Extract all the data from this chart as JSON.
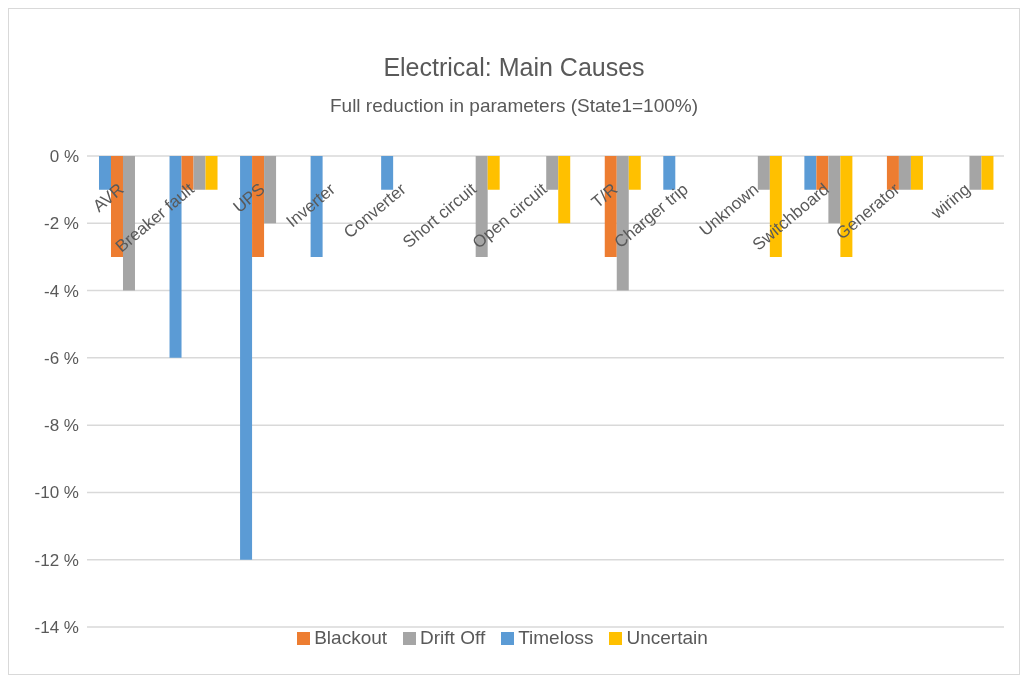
{
  "chart_data": {
    "type": "bar",
    "title": "Electrical: Main Causes",
    "subtitle": "Full reduction in parameters (State1=100%)",
    "categories": [
      "AVR",
      "Breaker fault",
      "UPS",
      "Inverter",
      "Converter",
      "Short circuit",
      "Open circuit",
      "T/R",
      "Charger trip",
      "Unknown",
      "Switchboard",
      "Generator",
      "wiring"
    ],
    "series": [
      {
        "name": "Timeloss",
        "color": "#5b9bd5",
        "values": [
          -1,
          -6,
          -12,
          -3,
          -1,
          0,
          0,
          0,
          -1,
          0,
          -1,
          0,
          0
        ]
      },
      {
        "name": "Blackout",
        "color": "#ed7d31",
        "values": [
          -3,
          -1,
          -3,
          0,
          0,
          0,
          0,
          -3,
          0,
          0,
          -1,
          -1,
          0
        ]
      },
      {
        "name": "Drift Off",
        "color": "#a5a5a5",
        "values": [
          -4,
          -1,
          -2,
          0,
          0,
          -3,
          -1,
          -4,
          0,
          -1,
          -2,
          -1,
          -1
        ]
      },
      {
        "name": "Uncertain",
        "color": "#ffc000",
        "values": [
          0,
          -1,
          0,
          0,
          0,
          -1,
          -2,
          -1,
          0,
          -3,
          -3,
          -1,
          -1
        ]
      }
    ],
    "ylim": [
      -14,
      0
    ],
    "yticks": [
      {
        "value": -14,
        "label": "-14 %"
      },
      {
        "value": -12,
        "label": "-12 %"
      },
      {
        "value": -10,
        "label": "-10 %"
      },
      {
        "value": -8,
        "label": "-8 %"
      },
      {
        "value": -6,
        "label": "-6 %"
      },
      {
        "value": -4,
        "label": "-4 %"
      },
      {
        "value": -2,
        "label": "-2 %"
      },
      {
        "value": 0,
        "label": "0 %"
      }
    ],
    "grid": "y",
    "legend": "bottom"
  }
}
